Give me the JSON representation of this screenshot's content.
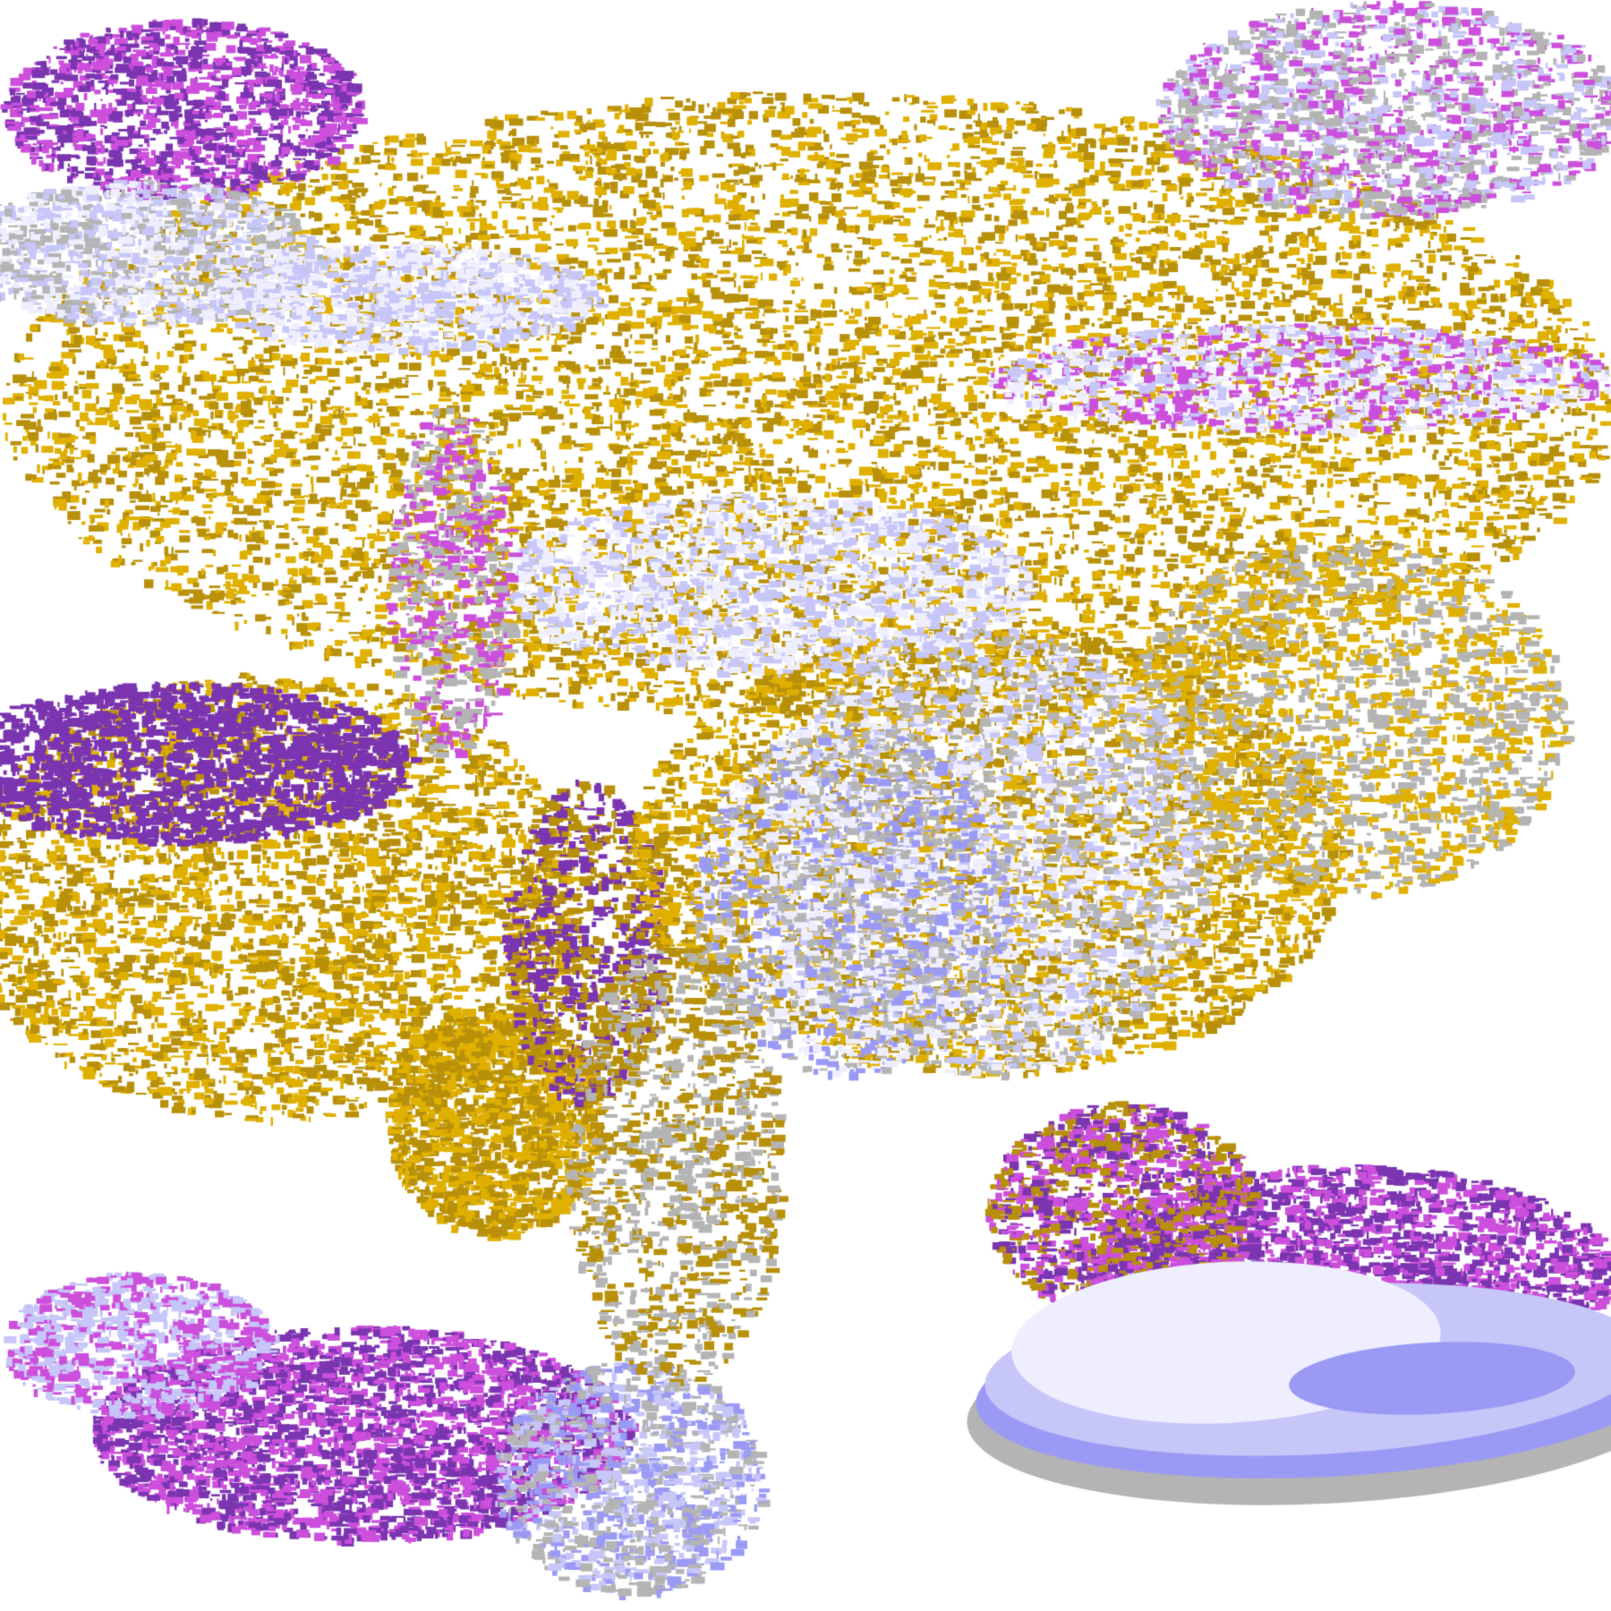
{
  "image": {
    "kind": "false-color satellite cloud classification imagery",
    "palette": {
      "clear": "#ffffff",
      "gold_light": "#e0b000",
      "gold_dark": "#b8900a",
      "purple": "#7b35b0",
      "magenta": "#cc4fdc",
      "lavender_pale": "#eeeeff",
      "lavender": "#c6c6f8",
      "periwinkle": "#9a9af5",
      "blue": "#7a8af0",
      "gray_light": "#b4b4b4",
      "gray_dark": "#909090"
    }
  }
}
